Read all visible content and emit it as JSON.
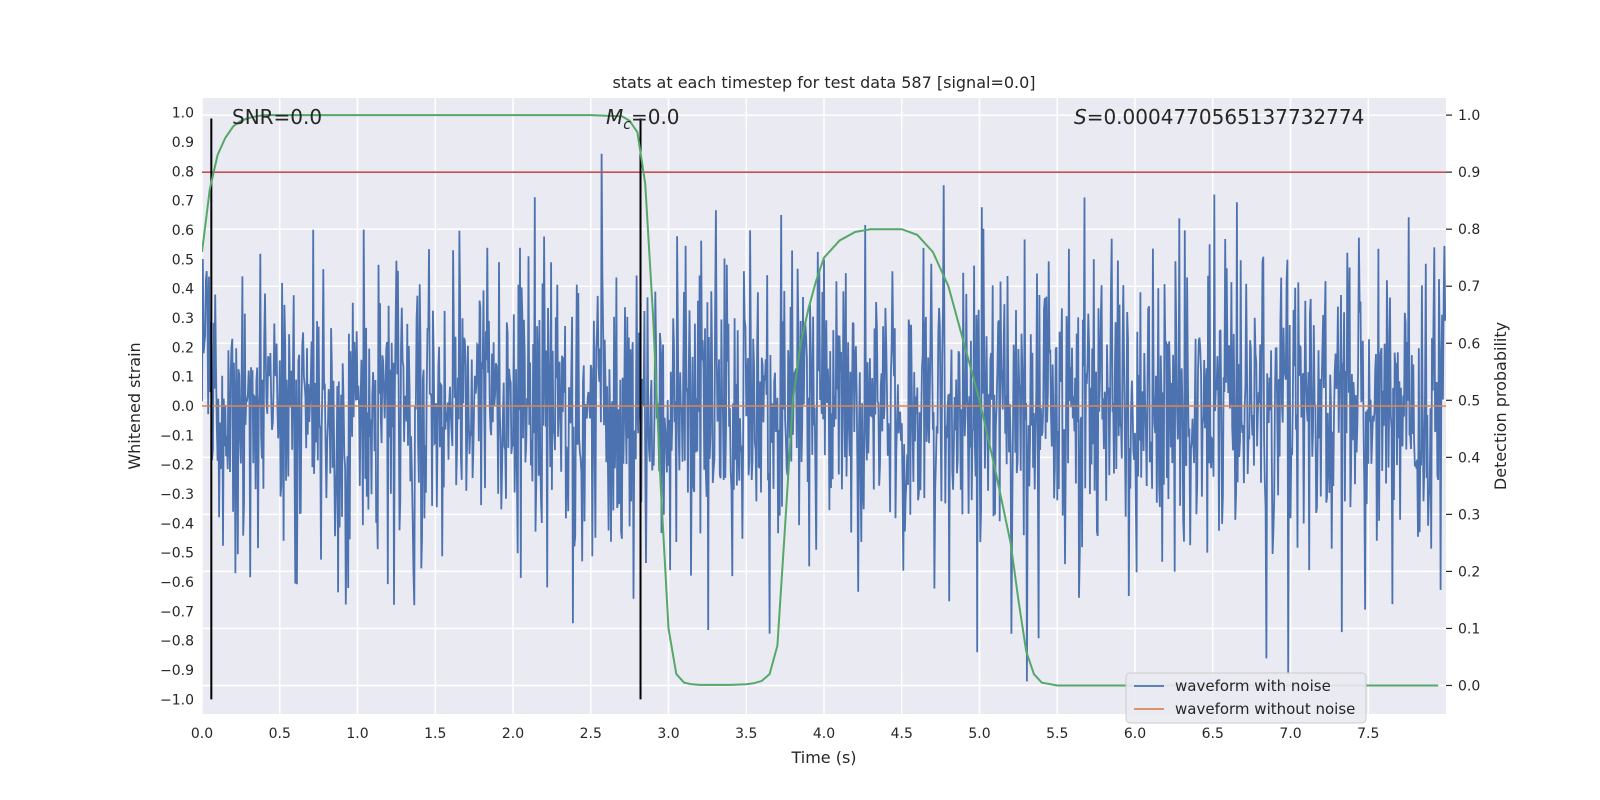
{
  "chart_data": {
    "type": "line",
    "title": "stats at each timestep for test data 587 [signal=0.0]",
    "xlabel": "Time (s)",
    "ylabel_left": "Whitened strain",
    "ylabel_right": "Detection probability",
    "xlim": [
      0.0,
      8.0
    ],
    "ylim_left": [
      -1.05,
      1.05
    ],
    "ylim_right": [
      -0.05,
      1.03
    ],
    "grid": true,
    "x_ticks": [
      "0.0",
      "0.5",
      "1.0",
      "1.5",
      "2.0",
      "2.5",
      "3.0",
      "3.5",
      "4.0",
      "4.5",
      "5.0",
      "5.5",
      "6.0",
      "6.5",
      "7.0",
      "7.5"
    ],
    "x_tick_values": [
      0.0,
      0.5,
      1.0,
      1.5,
      2.0,
      2.5,
      3.0,
      3.5,
      4.0,
      4.5,
      5.0,
      5.5,
      6.0,
      6.5,
      7.0,
      7.5
    ],
    "y_left_ticks": [
      "1.0",
      "0.9",
      "0.8",
      "0.7",
      "0.6",
      "0.5",
      "0.4",
      "0.3",
      "0.2",
      "0.1",
      "0.0",
      "−0.1",
      "−0.2",
      "−0.3",
      "−0.4",
      "−0.5",
      "−0.6",
      "−0.7",
      "−0.8",
      "−0.9",
      "−1.0"
    ],
    "y_left_tick_values": [
      1.0,
      0.9,
      0.8,
      0.7,
      0.6,
      0.5,
      0.4,
      0.3,
      0.2,
      0.1,
      0.0,
      -0.1,
      -0.2,
      -0.3,
      -0.4,
      -0.5,
      -0.6,
      -0.7,
      -0.8,
      -0.9,
      -1.0
    ],
    "y_right_ticks": [
      "1.0",
      "0.9",
      "0.8",
      "0.7",
      "0.6",
      "0.5",
      "0.4",
      "0.3",
      "0.2",
      "0.1",
      "0.0"
    ],
    "y_right_tick_values": [
      1.0,
      0.9,
      0.8,
      0.7,
      0.6,
      0.5,
      0.4,
      0.3,
      0.2,
      0.1,
      0.0
    ],
    "annotations": {
      "snr": "SNR=0.0",
      "mc_symbol": "M",
      "mc_sub": "c",
      "mc_value": "=0.0",
      "s_symbol": "S",
      "s_value": "=0.0004770565137732774"
    },
    "vertical_markers": [
      0.06,
      2.82
    ],
    "threshold_line": {
      "axis": "right",
      "value": 0.9,
      "color": "#c44e52"
    },
    "series": [
      {
        "name": "waveform with noise",
        "axis": "left",
        "color": "#4c72b0",
        "note": "dense whitened noise, sampled ~1600 points over 8 s, amplitude mostly within ±0.5 with spikes to about ±1.0"
      },
      {
        "name": "waveform without noise",
        "axis": "left",
        "color": "#dd8452",
        "x": [
          0.0,
          8.0
        ],
        "y": [
          0.0,
          0.0
        ]
      },
      {
        "name": "detection probability",
        "axis": "right",
        "color": "#55a868",
        "x": [
          0.0,
          0.05,
          0.1,
          0.15,
          0.2,
          0.25,
          0.3,
          0.35,
          0.4,
          0.5,
          1.0,
          1.5,
          2.0,
          2.5,
          2.6,
          2.7,
          2.75,
          2.8,
          2.85,
          2.9,
          2.95,
          3.0,
          3.05,
          3.1,
          3.15,
          3.2,
          3.3,
          3.4,
          3.5,
          3.55,
          3.6,
          3.65,
          3.7,
          3.75,
          3.8,
          3.85,
          3.9,
          3.95,
          4.0,
          4.1,
          4.2,
          4.3,
          4.4,
          4.5,
          4.6,
          4.7,
          4.8,
          4.9,
          5.0,
          5.1,
          5.2,
          5.25,
          5.3,
          5.35,
          5.4,
          5.5,
          6.0,
          7.0,
          7.95
        ],
        "y": [
          0.76,
          0.87,
          0.93,
          0.96,
          0.98,
          0.99,
          0.995,
          0.998,
          1.0,
          1.0,
          1.0,
          1.0,
          1.0,
          1.0,
          0.999,
          0.998,
          0.99,
          0.97,
          0.88,
          0.65,
          0.35,
          0.1,
          0.02,
          0.005,
          0.002,
          0.001,
          0.001,
          0.001,
          0.002,
          0.004,
          0.008,
          0.02,
          0.07,
          0.28,
          0.5,
          0.6,
          0.66,
          0.71,
          0.75,
          0.78,
          0.795,
          0.8,
          0.8,
          0.8,
          0.79,
          0.76,
          0.7,
          0.6,
          0.5,
          0.38,
          0.25,
          0.15,
          0.06,
          0.02,
          0.005,
          0.0,
          0.0,
          0.0,
          0.0
        ]
      }
    ],
    "legend": {
      "placement": "lower-right",
      "entries": [
        "waveform with noise",
        "waveform without noise"
      ]
    }
  }
}
